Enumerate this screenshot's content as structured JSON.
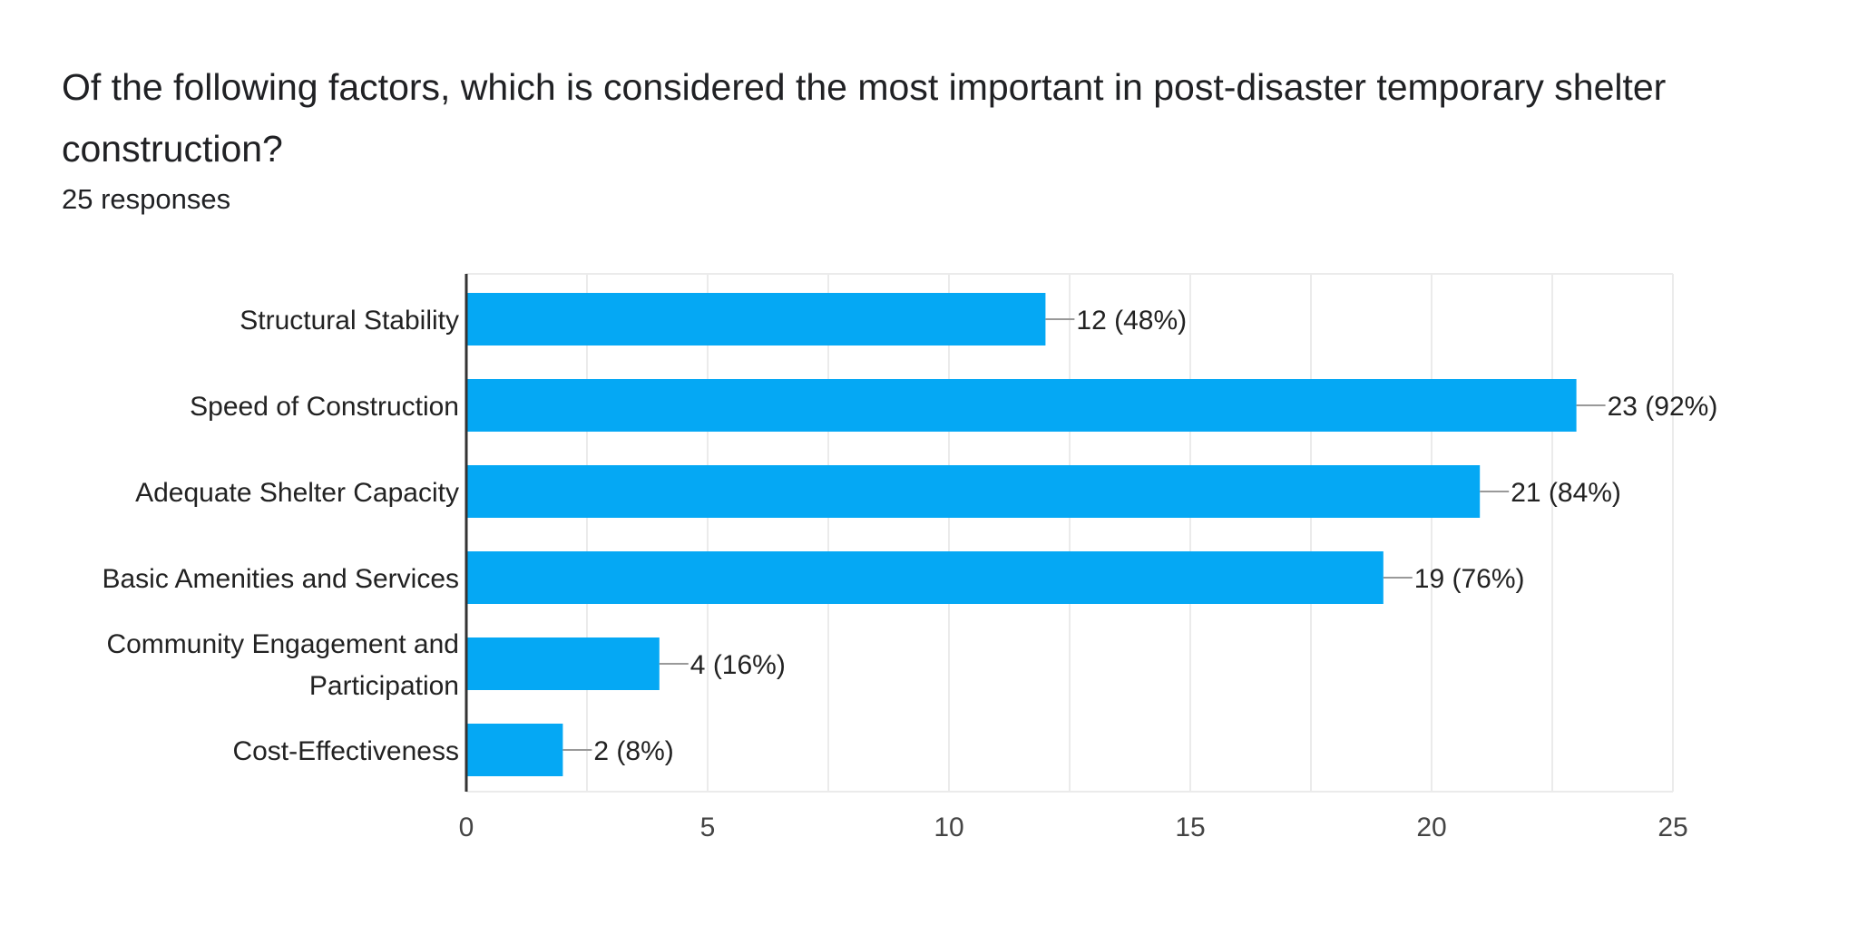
{
  "question": {
    "title": "Of the following factors, which is considered the most important in post-disaster temporary shelter construction?",
    "responses": "25 responses"
  },
  "colors": {
    "bar": "#05a8f4",
    "grid": "#ebebeb",
    "axis": "#333333",
    "leader": "#999999"
  },
  "chart_data": {
    "type": "bar",
    "orientation": "horizontal",
    "categories": [
      [
        "Structural Stability"
      ],
      [
        "Speed of Construction"
      ],
      [
        "Adequate Shelter Capacity"
      ],
      [
        "Basic Amenities and Services"
      ],
      [
        "Community Engagement and",
        "Participation"
      ],
      [
        "Cost-Effectiveness"
      ]
    ],
    "values": [
      12,
      23,
      21,
      19,
      4,
      2
    ],
    "value_labels": [
      "12 (48%)",
      "23 (92%)",
      "21 (84%)",
      "19 (76%)",
      "4 (16%)",
      "2 (8%)"
    ],
    "xlim": [
      0,
      25
    ],
    "xticks": [
      0,
      5,
      10,
      15,
      20,
      25
    ],
    "xticks_labels": [
      "0",
      "5",
      "10",
      "15",
      "20",
      "25"
    ],
    "minor_grid_step": 2.5,
    "grid": true,
    "legend": "none"
  }
}
